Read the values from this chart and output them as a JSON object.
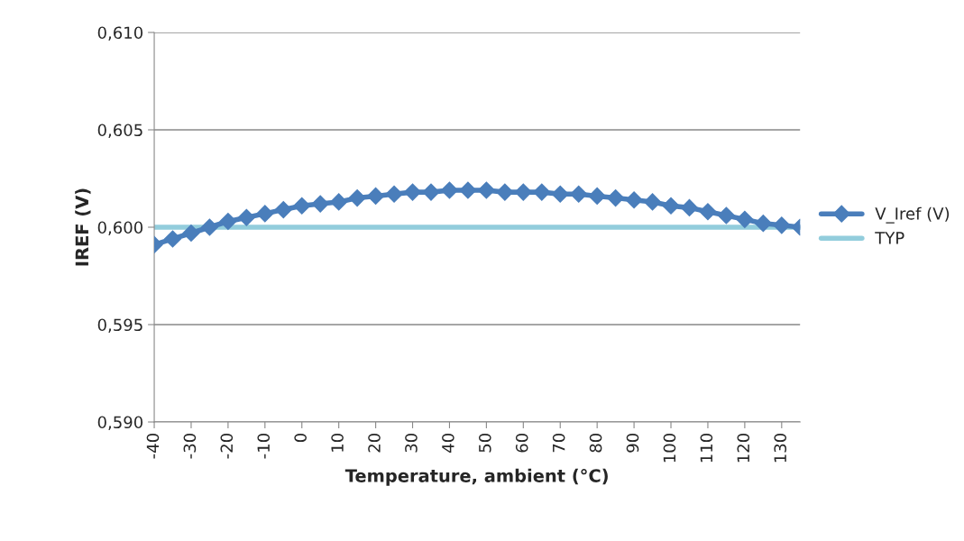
{
  "chart_data": {
    "type": "line",
    "xlabel": "Temperature, ambient (°C)",
    "ylabel": "IREF (V)",
    "categories": [
      "-40",
      null,
      "-30",
      null,
      "-20",
      null,
      "-10",
      null,
      "0",
      null,
      "10",
      null,
      "20",
      null,
      "30",
      null,
      "40",
      null,
      "50",
      null,
      "60",
      null,
      "70",
      null,
      "80",
      null,
      "90",
      null,
      "100",
      null,
      "110",
      null,
      "120",
      null,
      "130",
      null
    ],
    "series": [
      {
        "name": "V_Iref (V)",
        "color": "#4a7ebb",
        "marker": "diamond",
        "values": [
          0.5991,
          0.5994,
          0.5997,
          0.6,
          0.6003,
          0.6005,
          0.6007,
          0.6009,
          0.6011,
          0.6012,
          0.6013,
          0.6015,
          0.6016,
          0.6017,
          0.6018,
          0.6018,
          0.6019,
          0.6019,
          0.6019,
          0.6018,
          0.6018,
          0.6018,
          0.6017,
          0.6017,
          0.6016,
          0.6015,
          0.6014,
          0.6013,
          0.6011,
          0.601,
          0.6008,
          0.6006,
          0.6004,
          0.6002,
          0.6001,
          0.6
        ]
      },
      {
        "name": "TYP",
        "color": "#92cddc",
        "marker": "none",
        "values": [
          0.6,
          0.6,
          0.6,
          0.6,
          0.6,
          0.6,
          0.6,
          0.6,
          0.6,
          0.6,
          0.6,
          0.6,
          0.6,
          0.6,
          0.6,
          0.6,
          0.6,
          0.6,
          0.6,
          0.6,
          0.6,
          0.6,
          0.6,
          0.6,
          0.6,
          0.6,
          0.6,
          0.6,
          0.6,
          0.6,
          0.6,
          0.6,
          0.6,
          0.6,
          0.6,
          0.6
        ]
      }
    ],
    "ylim": [
      0.59,
      0.61
    ],
    "yticks": [
      {
        "value": 0.59,
        "label": "0,590"
      },
      {
        "value": 0.595,
        "label": "0,595"
      },
      {
        "value": 0.6,
        "label": "0,600"
      },
      {
        "value": 0.605,
        "label": "0,605"
      },
      {
        "value": 0.61,
        "label": "0,610"
      }
    ],
    "grid": "y",
    "legend": "right"
  }
}
